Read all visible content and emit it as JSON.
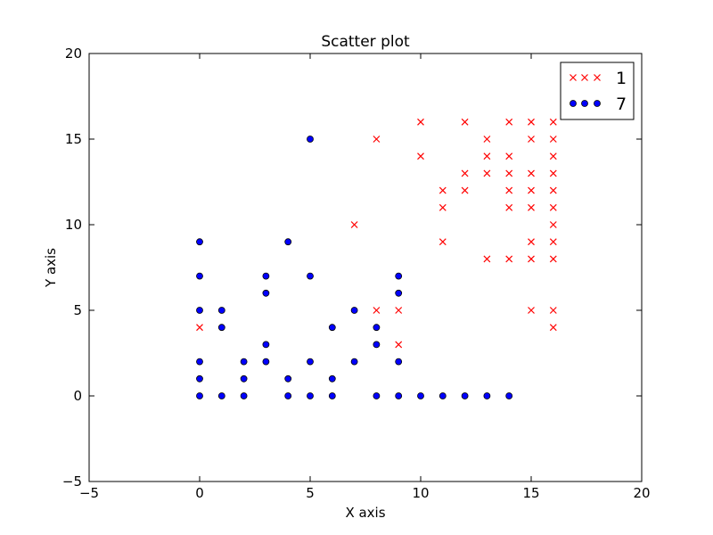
{
  "chart_data": {
    "type": "scatter",
    "title": "Scatter plot",
    "xlabel": "X axis",
    "ylabel": "Y axis",
    "xlim": [
      -5,
      20
    ],
    "ylim": [
      -5,
      20
    ],
    "xticks": [
      -5,
      0,
      5,
      10,
      15,
      20
    ],
    "yticks": [
      -5,
      0,
      5,
      10,
      15,
      20
    ],
    "xtick_labels": [
      "−5",
      "0",
      "5",
      "10",
      "15",
      "20"
    ],
    "ytick_labels": [
      "−5",
      "0",
      "5",
      "10",
      "15",
      "20"
    ],
    "grid": false,
    "legend_position": "top-right",
    "series": [
      {
        "name": "1",
        "marker": "x",
        "color": "#ff0000",
        "points": [
          [
            0,
            4
          ],
          [
            7,
            10
          ],
          [
            8,
            15
          ],
          [
            8,
            5
          ],
          [
            9,
            5
          ],
          [
            9,
            3
          ],
          [
            10,
            16
          ],
          [
            10,
            14
          ],
          [
            11,
            12
          ],
          [
            11,
            11
          ],
          [
            11,
            9
          ],
          [
            12,
            16
          ],
          [
            12,
            13
          ],
          [
            12,
            12
          ],
          [
            13,
            15
          ],
          [
            13,
            14
          ],
          [
            13,
            13
          ],
          [
            13,
            8
          ],
          [
            14,
            16
          ],
          [
            14,
            14
          ],
          [
            14,
            13
          ],
          [
            14,
            12
          ],
          [
            14,
            11
          ],
          [
            14,
            8
          ],
          [
            15,
            16
          ],
          [
            15,
            15
          ],
          [
            15,
            13
          ],
          [
            15,
            12
          ],
          [
            15,
            11
          ],
          [
            15,
            9
          ],
          [
            15,
            8
          ],
          [
            15,
            5
          ],
          [
            16,
            16
          ],
          [
            16,
            15
          ],
          [
            16,
            14
          ],
          [
            16,
            13
          ],
          [
            16,
            12
          ],
          [
            16,
            11
          ],
          [
            16,
            10
          ],
          [
            16,
            9
          ],
          [
            16,
            8
          ],
          [
            16,
            5
          ],
          [
            16,
            4
          ]
        ]
      },
      {
        "name": "7",
        "marker": "o",
        "color": "#0000ff",
        "points": [
          [
            0,
            9
          ],
          [
            0,
            7
          ],
          [
            0,
            5
          ],
          [
            0,
            2
          ],
          [
            0,
            1
          ],
          [
            0,
            0
          ],
          [
            1,
            5
          ],
          [
            1,
            4
          ],
          [
            1,
            0
          ],
          [
            2,
            2
          ],
          [
            2,
            1
          ],
          [
            2,
            0
          ],
          [
            3,
            7
          ],
          [
            3,
            6
          ],
          [
            3,
            3
          ],
          [
            3,
            2
          ],
          [
            4,
            9
          ],
          [
            4,
            1
          ],
          [
            4,
            0
          ],
          [
            5,
            15
          ],
          [
            5,
            7
          ],
          [
            5,
            2
          ],
          [
            5,
            0
          ],
          [
            6,
            4
          ],
          [
            6,
            1
          ],
          [
            6,
            0
          ],
          [
            7,
            5
          ],
          [
            7,
            2
          ],
          [
            8,
            4
          ],
          [
            8,
            3
          ],
          [
            8,
            0
          ],
          [
            9,
            7
          ],
          [
            9,
            6
          ],
          [
            9,
            2
          ],
          [
            9,
            0
          ],
          [
            10,
            0
          ],
          [
            11,
            0
          ],
          [
            12,
            0
          ],
          [
            13,
            0
          ],
          [
            14,
            0
          ]
        ]
      }
    ]
  }
}
